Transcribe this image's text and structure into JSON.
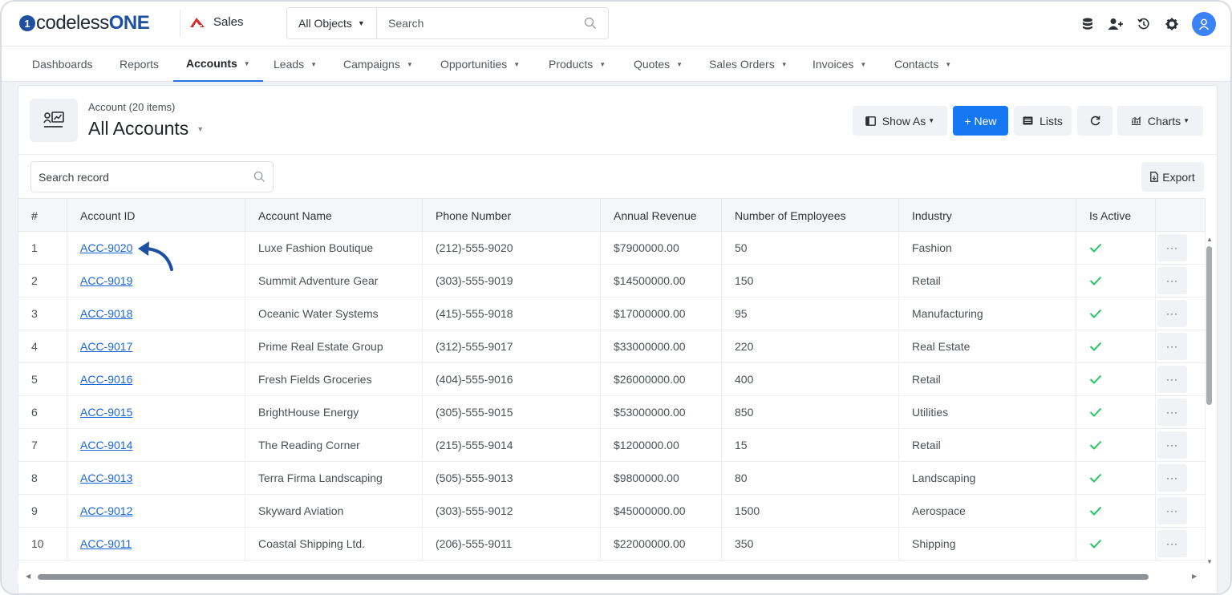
{
  "topbar": {
    "logo_text_plain": "codeless",
    "logo_text_bold": "ONE",
    "app_name": "Sales",
    "object_select": "All Objects",
    "search_placeholder": "Search"
  },
  "nav": [
    {
      "label": "Dashboards",
      "dropdown": false,
      "active": false
    },
    {
      "label": "Reports",
      "dropdown": false,
      "active": false
    },
    {
      "label": "Accounts",
      "dropdown": true,
      "active": true
    },
    {
      "label": "Leads",
      "dropdown": true,
      "active": false
    },
    {
      "label": "Campaigns",
      "dropdown": true,
      "active": false
    },
    {
      "label": "Opportunities",
      "dropdown": true,
      "active": false
    },
    {
      "label": "Products",
      "dropdown": true,
      "active": false
    },
    {
      "label": "Quotes",
      "dropdown": true,
      "active": false
    },
    {
      "label": "Sales Orders",
      "dropdown": true,
      "active": false
    },
    {
      "label": "Invoices",
      "dropdown": true,
      "active": false
    },
    {
      "label": "Contacts",
      "dropdown": true,
      "active": false
    }
  ],
  "header": {
    "subtitle": "Account (20 items)",
    "title": "All Accounts",
    "show_as": "Show As",
    "new": "+ New",
    "lists": "Lists",
    "charts": "Charts"
  },
  "toolbar": {
    "search_placeholder": "Search record",
    "export": "Export"
  },
  "table": {
    "columns": [
      "#",
      "Account ID",
      "Account Name",
      "Phone Number",
      "Annual Revenue",
      "Number of Employees",
      "Industry",
      "Is Active"
    ],
    "rows": [
      [
        "1",
        "ACC-9020",
        "Luxe Fashion Boutique",
        "(212)-555-9020",
        "$7900000.00",
        "50",
        "Fashion",
        true
      ],
      [
        "2",
        "ACC-9019",
        "Summit Adventure Gear",
        "(303)-555-9019",
        "$14500000.00",
        "150",
        "Retail",
        true
      ],
      [
        "3",
        "ACC-9018",
        "Oceanic Water Systems",
        "(415)-555-9018",
        "$17000000.00",
        "95",
        "Manufacturing",
        true
      ],
      [
        "4",
        "ACC-9017",
        "Prime Real Estate Group",
        "(312)-555-9017",
        "$33000000.00",
        "220",
        "Real Estate",
        true
      ],
      [
        "5",
        "ACC-9016",
        "Fresh Fields Groceries",
        "(404)-555-9016",
        "$26000000.00",
        "400",
        "Retail",
        true
      ],
      [
        "6",
        "ACC-9015",
        "BrightHouse Energy",
        "(305)-555-9015",
        "$53000000.00",
        "850",
        "Utilities",
        true
      ],
      [
        "7",
        "ACC-9014",
        "The Reading Corner",
        "(215)-555-9014",
        "$1200000.00",
        "15",
        "Retail",
        true
      ],
      [
        "8",
        "ACC-9013",
        "Terra Firma Landscaping",
        "(505)-555-9013",
        "$9800000.00",
        "80",
        "Landscaping",
        true
      ],
      [
        "9",
        "ACC-9012",
        "Skyward Aviation",
        "(303)-555-9012",
        "$45000000.00",
        "1500",
        "Aerospace",
        true
      ],
      [
        "10",
        "ACC-9011",
        "Coastal Shipping Ltd.",
        "(206)-555-9011",
        "$22000000.00",
        "350",
        "Shipping",
        true
      ]
    ]
  },
  "colors": {
    "accent": "#1677f2",
    "link": "#1a66d9",
    "check": "#22c55e",
    "annotation_arrow": "#1e4fa0"
  },
  "icons": [
    "database-icon",
    "add-user-icon",
    "history-icon",
    "gear-icon",
    "user-avatar-icon",
    "search-icon",
    "chart-icon",
    "list-icon",
    "refresh-icon",
    "export-icon",
    "check-icon",
    "more-icon"
  ]
}
